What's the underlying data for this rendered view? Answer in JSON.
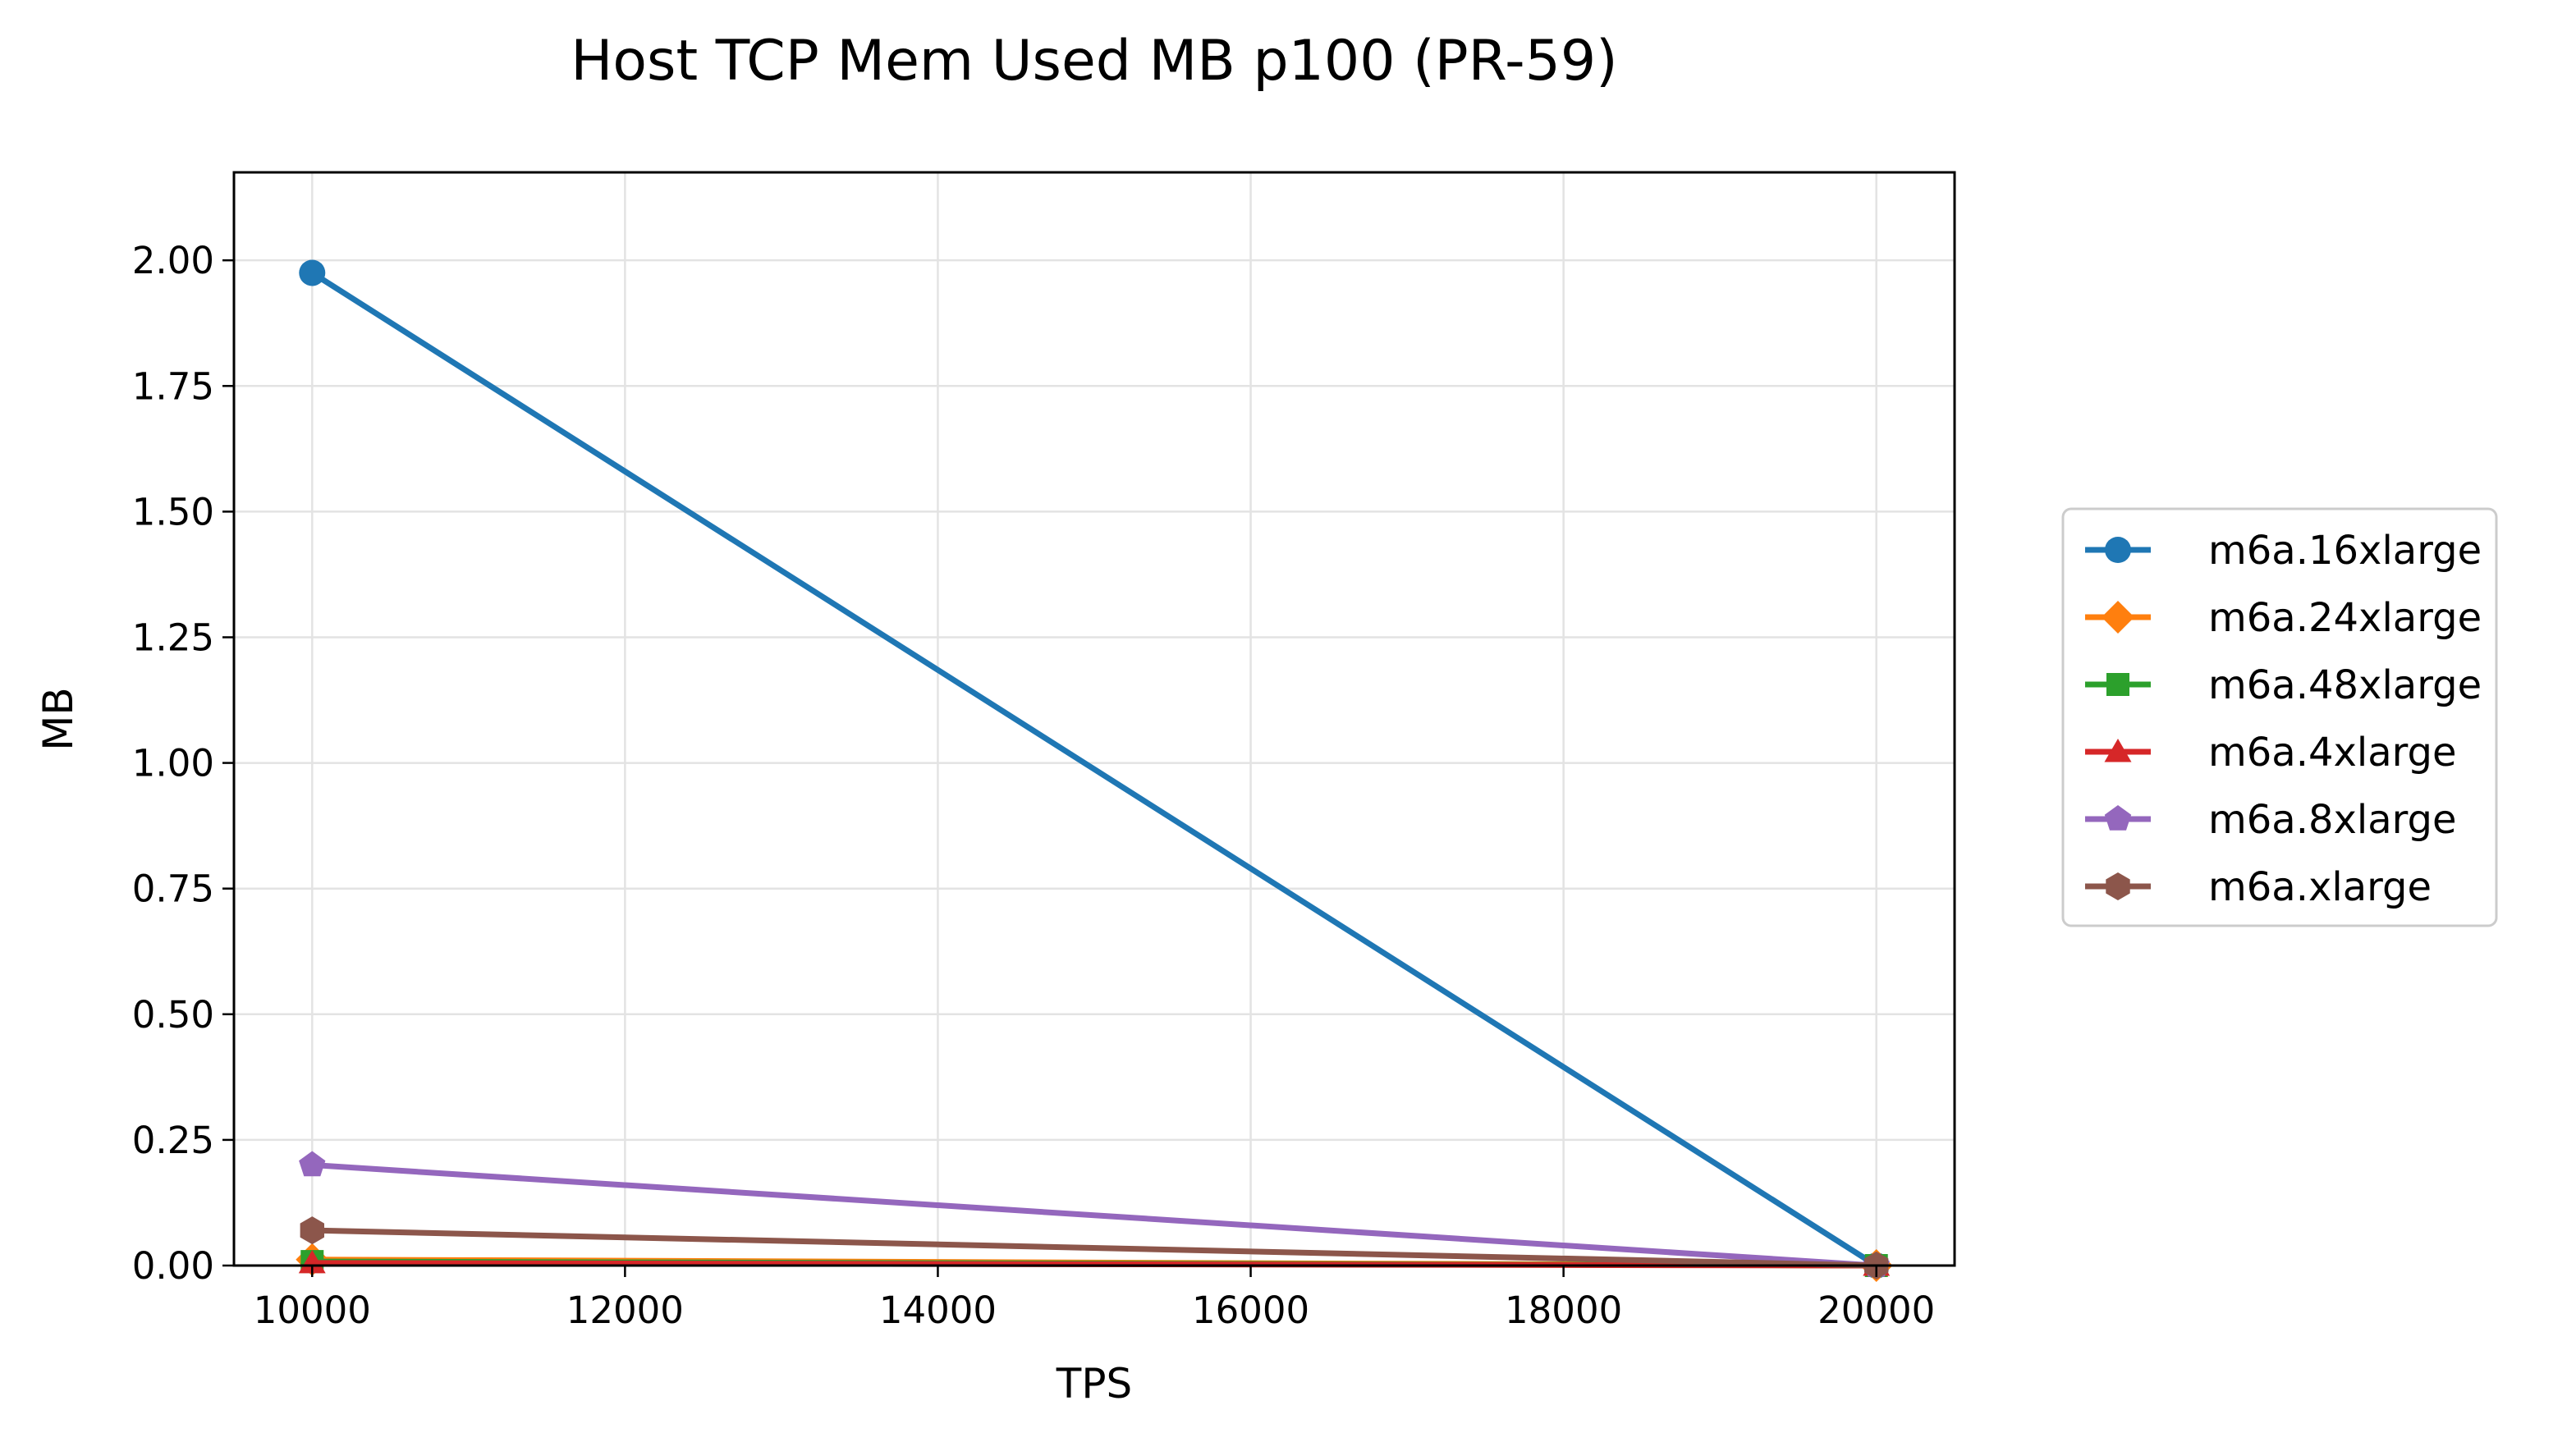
{
  "chart_data": {
    "type": "line",
    "title": "Host TCP Mem Used MB p100 (PR-59)",
    "xlabel": "TPS",
    "ylabel": "MB",
    "xlim": [
      9500,
      20500
    ],
    "ylim": [
      0,
      2.175
    ],
    "xticks": [
      10000,
      12000,
      14000,
      16000,
      18000,
      20000
    ],
    "xtick_labels": [
      "10000",
      "12000",
      "14000",
      "16000",
      "18000",
      "20000"
    ],
    "yticks": [
      0,
      0.25,
      0.5,
      0.75,
      1.0,
      1.25,
      1.5,
      1.75,
      2.0
    ],
    "ytick_labels": [
      "0.00",
      "0.25",
      "0.50",
      "0.75",
      "1.00",
      "1.25",
      "1.50",
      "1.75",
      "2.00"
    ],
    "grid": true,
    "legend_position": "right, outside plot",
    "x": [
      10000,
      20000
    ],
    "series": [
      {
        "name": "m6a.16xlarge",
        "color": "#1f77b4",
        "marker": "circle",
        "values": [
          1.975,
          0.0
        ]
      },
      {
        "name": "m6a.24xlarge",
        "color": "#ff7f0e",
        "marker": "diamond",
        "values": [
          0.012,
          0.0
        ]
      },
      {
        "name": "m6a.48xlarge",
        "color": "#2ca02c",
        "marker": "square",
        "values": [
          0.008,
          0.0
        ]
      },
      {
        "name": "m6a.4xlarge",
        "color": "#d62728",
        "marker": "triangle",
        "values": [
          0.005,
          0.0
        ]
      },
      {
        "name": "m6a.8xlarge",
        "color": "#9467bd",
        "marker": "pentagon",
        "values": [
          0.2,
          0.0
        ]
      },
      {
        "name": "m6a.xlarge",
        "color": "#8c564b",
        "marker": "hexagon",
        "values": [
          0.07,
          0.0
        ]
      }
    ]
  }
}
